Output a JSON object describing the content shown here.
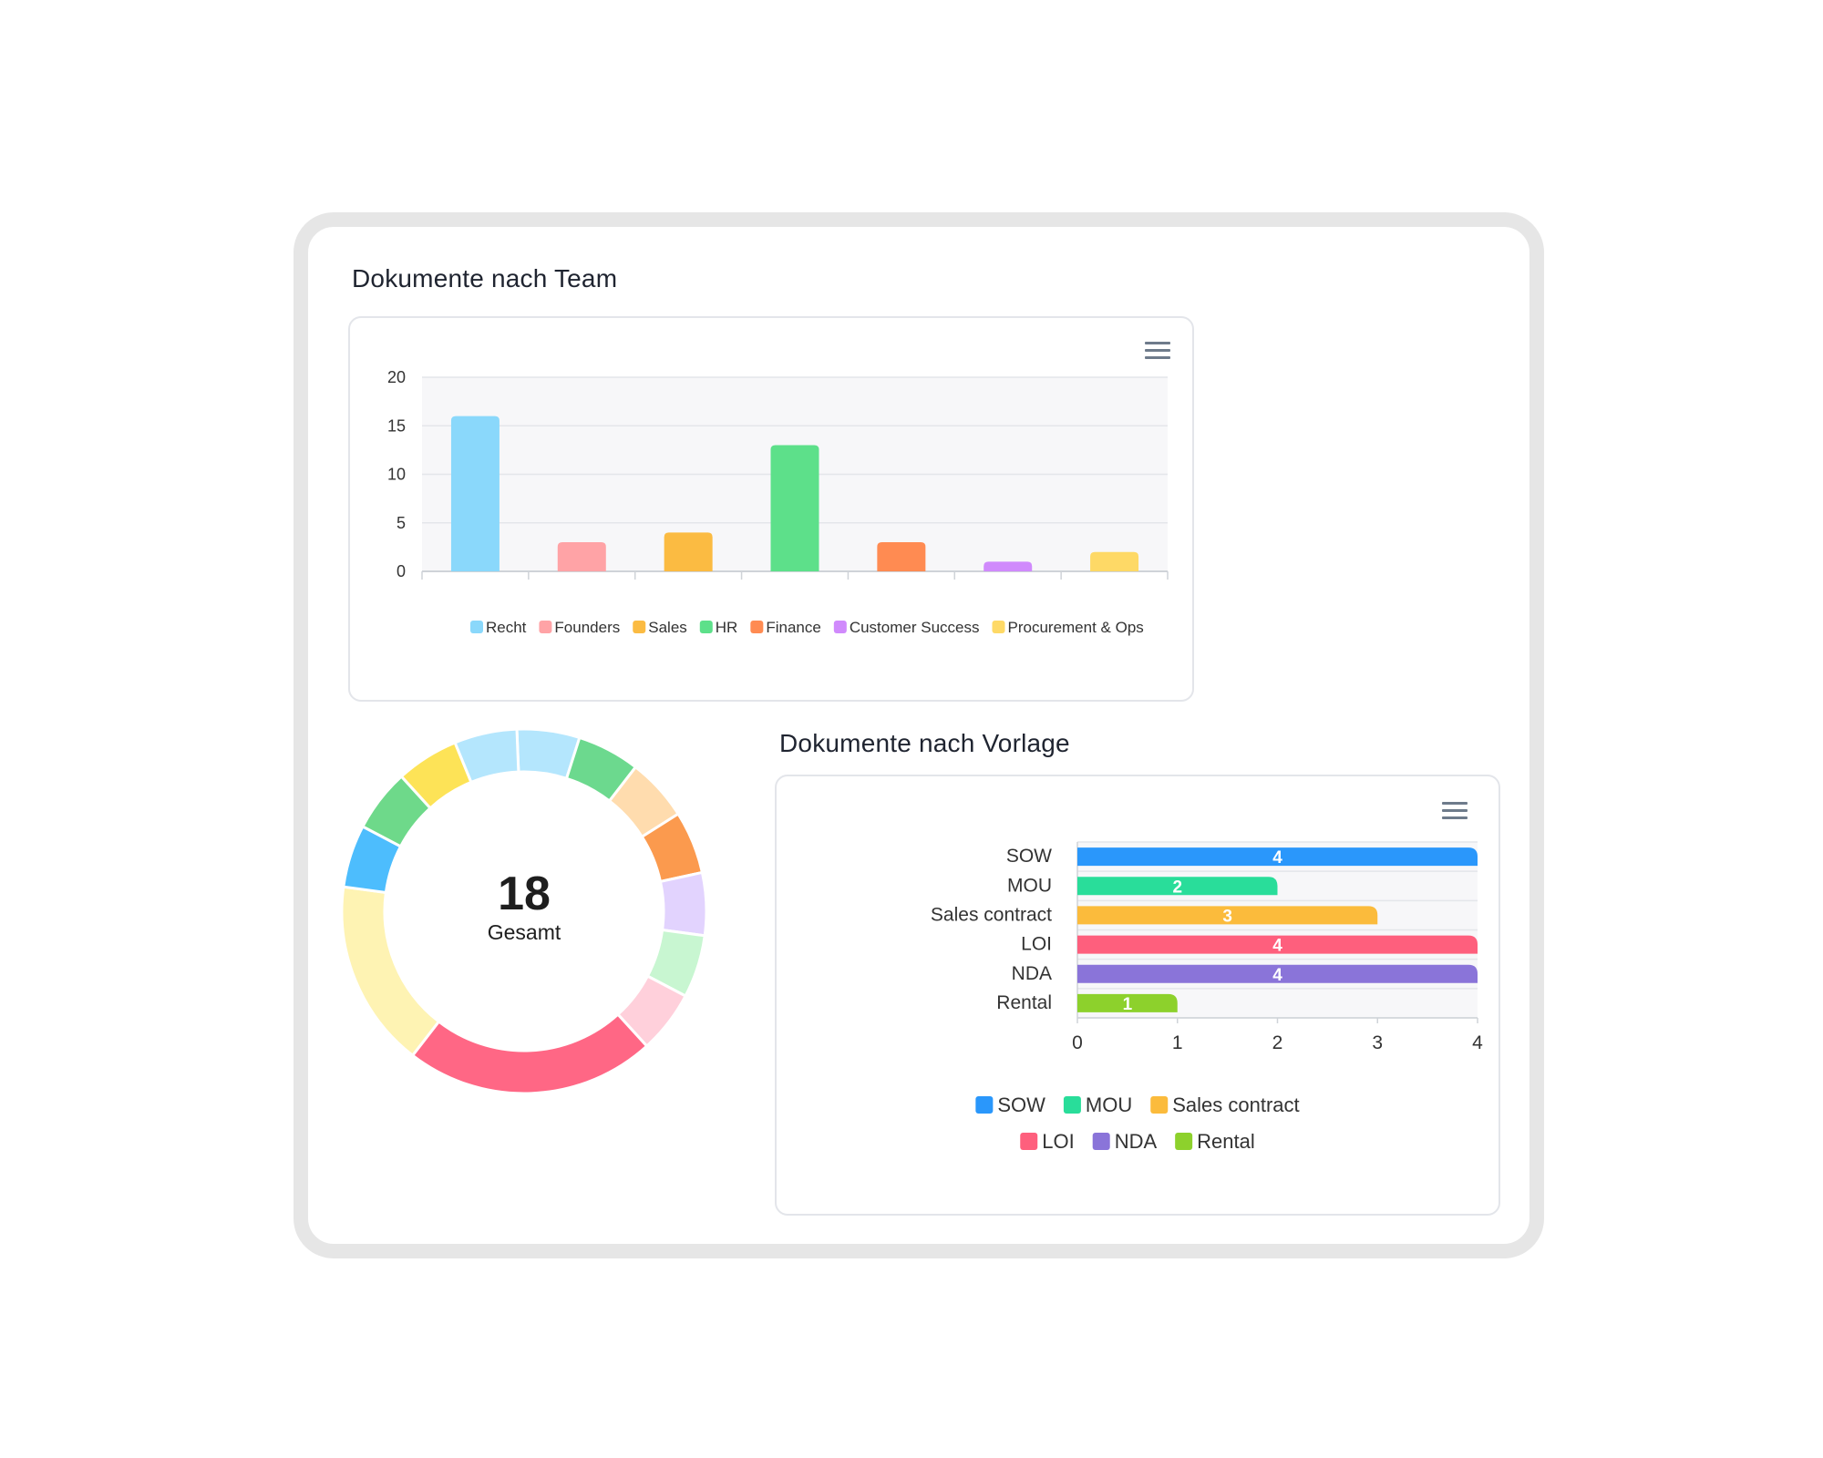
{
  "team_chart": {
    "title": "Dokumente nach Team",
    "menu_icon": "hamburger-menu-icon",
    "chart_data": {
      "type": "bar",
      "categories": [
        "Recht",
        "Founders",
        "Sales",
        "HR",
        "Finance",
        "Customer Success",
        "Procurement & Ops"
      ],
      "values": [
        16,
        3,
        4,
        13,
        3,
        1,
        2
      ],
      "colors": [
        "#8ad8fb",
        "#ffa3a6",
        "#fbbb42",
        "#5de08a",
        "#ff8b52",
        "#d08afc",
        "#fed966"
      ],
      "title": "",
      "xlabel": "",
      "ylabel": "",
      "ylim": [
        0,
        20
      ],
      "yticks": [
        "0",
        "5",
        "10",
        "15",
        "20"
      ],
      "legend": "bottom",
      "grid": true
    }
  },
  "donut_chart": {
    "total_value": "18",
    "total_label": "Gesamt",
    "chart_data": {
      "type": "pie",
      "variant": "donut",
      "values": [
        1,
        1,
        1,
        1,
        1,
        1,
        1,
        4,
        3,
        1,
        1,
        1,
        1
      ],
      "colors": [
        "#b4e6fd",
        "#6cd98e",
        "#ffdcae",
        "#fb9a4e",
        "#e2d3fe",
        "#c8f6d1",
        "#ffd0db",
        "#ff6785",
        "#fef3b3",
        "#4dbdfd",
        "#6ed98a",
        "#fde357",
        "#b4e6fd"
      ]
    }
  },
  "template_chart": {
    "title": "Dokumente nach Vorlage",
    "menu_icon": "hamburger-menu-icon",
    "chart_data": {
      "type": "bar",
      "orientation": "horizontal",
      "categories": [
        "SOW",
        "MOU",
        "Sales contract",
        "LOI",
        "NDA",
        "Rental"
      ],
      "values": [
        4,
        2,
        3,
        4,
        4,
        1
      ],
      "colors": [
        "#2a97fb",
        "#29dd9a",
        "#fbbb3c",
        "#fe5f7d",
        "#8a74d9",
        "#8dd12c"
      ],
      "xlim": [
        0,
        4
      ],
      "xticks": [
        "0",
        "1",
        "2",
        "3",
        "4"
      ],
      "data_labels": true,
      "legend": "bottom",
      "grid": true
    }
  }
}
